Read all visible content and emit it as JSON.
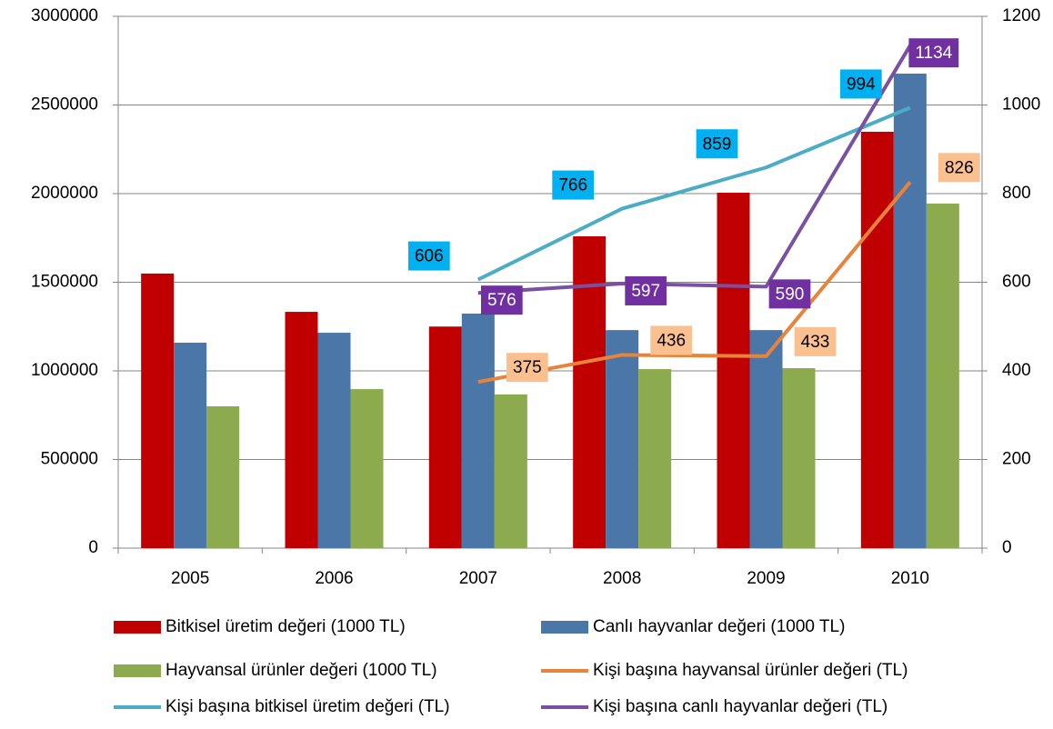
{
  "chart_data": {
    "type": "bar",
    "categories": [
      "2005",
      "2006",
      "2007",
      "2008",
      "2009",
      "2010"
    ],
    "ylim": [
      0,
      3000000
    ],
    "yticks": [
      0,
      500000,
      1000000,
      1500000,
      2000000,
      2500000,
      3000000
    ],
    "y2lim": [
      0,
      1200
    ],
    "y2ticks": [
      0,
      200,
      400,
      600,
      800,
      1000,
      1200
    ],
    "grid": true,
    "series": [
      {
        "name": "Bitkisel üretim değeri  (1000 TL)",
        "type": "bar",
        "color": "#c00000",
        "values": [
          1549000,
          1333000,
          1250000,
          1759000,
          2005000,
          2349000
        ]
      },
      {
        "name": "Canlı hayvanlar değeri (1000 TL)",
        "type": "bar",
        "color": "#4a76a8",
        "values": [
          1159000,
          1215000,
          1323000,
          1230000,
          1230000,
          2677000
        ]
      },
      {
        "name": "Hayvansal ürünler değeri (1000 TL)",
        "type": "bar",
        "color": "#8caa4e",
        "values": [
          800000,
          897000,
          867000,
          1010000,
          1015000,
          1944000
        ]
      },
      {
        "name": "Kişi başına hayvansal ürünler değeri (TL)",
        "type": "line",
        "axis": "y2",
        "color": "#e8833a",
        "label_color": "#fac090",
        "label_text": "#000",
        "values": [
          null,
          null,
          375,
          436,
          433,
          826
        ]
      },
      {
        "name": "Kişi başına bitkisel üretim değeri (TL)",
        "type": "line",
        "axis": "y2",
        "color": "#4bacc6",
        "label_color": "#00b0f0",
        "label_text": "#000",
        "values": [
          null,
          null,
          606,
          766,
          859,
          994
        ]
      },
      {
        "name": "Kişi başına canlı hayvanlar değeri (TL)",
        "type": "line",
        "axis": "y2",
        "color": "#7951a0",
        "label_color": "#7030a0",
        "label_text": "#fff",
        "values": [
          null,
          null,
          576,
          597,
          590,
          1134
        ]
      }
    ]
  }
}
